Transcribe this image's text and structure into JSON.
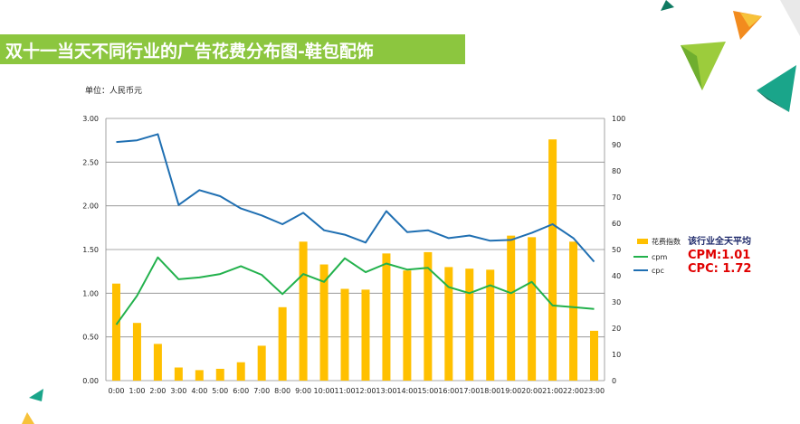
{
  "title": "双十一当天不同行业的广告花费分布图-鞋包配饰",
  "unit": "单位：人民币元",
  "colors": {
    "bar": "#ffc000",
    "cpm": "#22b14c",
    "cpc": "#1f6fb2",
    "title_bg": "#8cc63f",
    "avg_value": "#e00000",
    "avg_heading": "#1f2a6b"
  },
  "average": {
    "heading": "该行业全天平均",
    "cpm": "CPM:1.01",
    "cpc": "CPC: 1.72"
  },
  "chart_data": {
    "type": "bar",
    "categories": [
      "0:00",
      "1:00",
      "2:00",
      "3:00",
      "4:00",
      "5:00",
      "6:00",
      "7:00",
      "8:00",
      "9:00",
      "10:00",
      "11:00",
      "12:00",
      "13:00",
      "14:00",
      "15:00",
      "16:00",
      "17:00",
      "18:00",
      "19:00",
      "20:00",
      "21:00",
      "22:00",
      "23:00"
    ],
    "left_axis": {
      "ylim": [
        0,
        3.0
      ],
      "ticks": [
        "0.00",
        "0.50",
        "1.00",
        "1.50",
        "2.00",
        "2.50",
        "3.00"
      ]
    },
    "right_axis": {
      "ylim": [
        0,
        100
      ],
      "ticks": [
        "0",
        "10",
        "20",
        "30",
        "40",
        "50",
        "60",
        "70",
        "80",
        "90",
        "100"
      ]
    },
    "grid": true,
    "legend_position": "right",
    "series": [
      {
        "name": "花费指数",
        "type": "bar",
        "axis": "right",
        "values": [
          37,
          22,
          14,
          5,
          4,
          4.5,
          7,
          13.3,
          28,
          53,
          44.3,
          35,
          34.7,
          48.5,
          42,
          49,
          43.3,
          42.7,
          42.3,
          55.3,
          54.7,
          92,
          53,
          19
        ]
      },
      {
        "name": "cpm",
        "type": "line",
        "axis": "left",
        "values": [
          0.64,
          0.97,
          1.41,
          1.16,
          1.18,
          1.22,
          1.31,
          1.21,
          0.99,
          1.22,
          1.13,
          1.4,
          1.24,
          1.34,
          1.27,
          1.29,
          1.07,
          1.0,
          1.09,
          1.0,
          1.13,
          0.86,
          0.84,
          0.82
        ]
      },
      {
        "name": "cpc",
        "type": "line",
        "axis": "left",
        "values": [
          2.73,
          2.75,
          2.82,
          2.01,
          2.18,
          2.11,
          1.97,
          1.89,
          1.79,
          1.92,
          1.72,
          1.67,
          1.58,
          1.94,
          1.7,
          1.72,
          1.63,
          1.66,
          1.6,
          1.61,
          1.69,
          1.79,
          1.63,
          1.36
        ]
      }
    ]
  }
}
